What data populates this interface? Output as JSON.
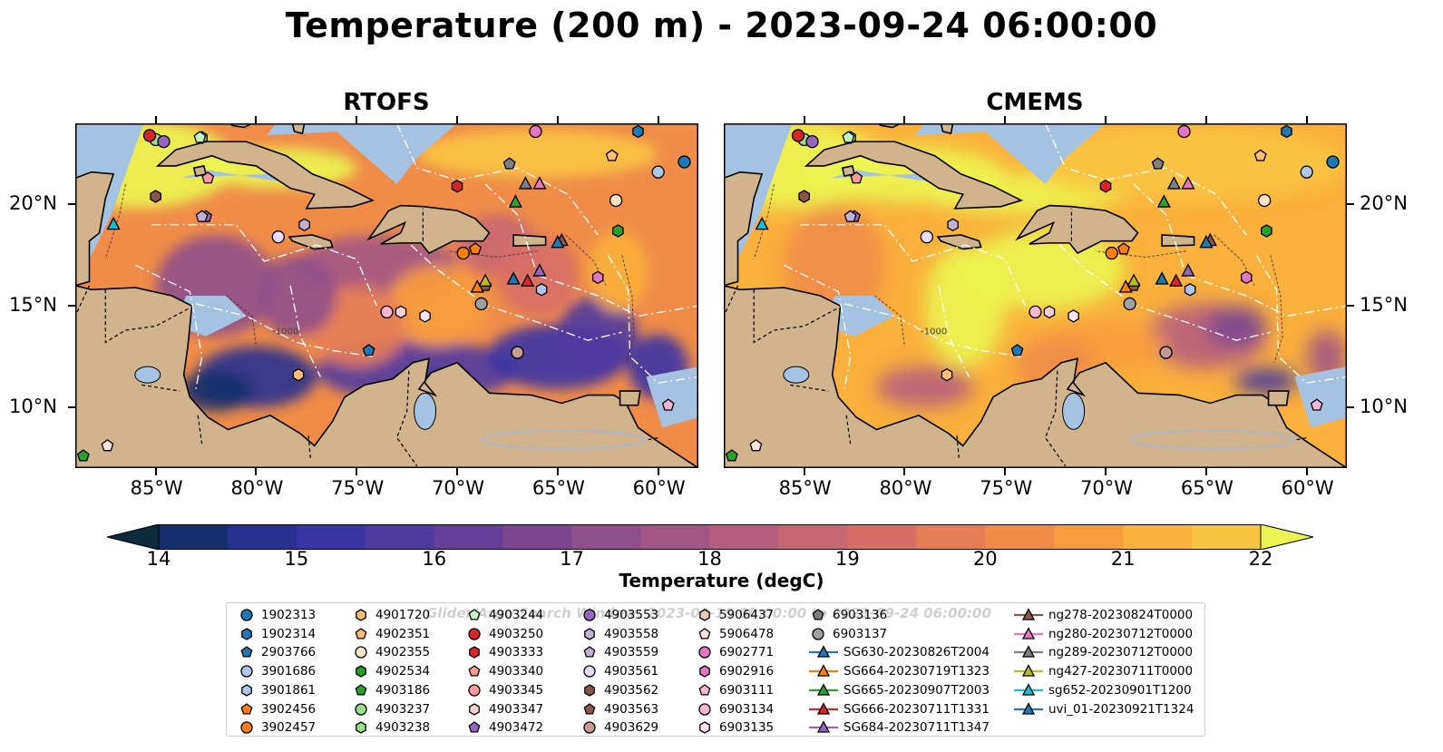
{
  "title": "Temperature (200 m) - 2023-09-24 06:00:00",
  "panels": [
    {
      "title": "RTOFS",
      "id": "rtofs"
    },
    {
      "title": "CMEMS",
      "id": "cmems"
    }
  ],
  "map": {
    "lon_range": [
      -89,
      -58
    ],
    "lat_range": [
      7,
      24
    ],
    "lon_ticks": [
      "85°W",
      "80°W",
      "75°W",
      "70°W",
      "65°W",
      "60°W"
    ],
    "lon_tick_values": [
      -85,
      -80,
      -75,
      -70,
      -65,
      -60
    ],
    "lat_ticks": [
      "20°N",
      "15°N",
      "10°N"
    ],
    "lat_tick_values": [
      20,
      15,
      10
    ],
    "contour_labels": [
      "-1000"
    ],
    "colors": {
      "land": "#d2b48c",
      "shelf": "#a5c2e3",
      "deep_pacific": "#0b2a3a"
    }
  },
  "colorbar": {
    "label": "Temperature (degC)",
    "ticks": [
      "14",
      "15",
      "16",
      "17",
      "18",
      "19",
      "20",
      "21",
      "22"
    ],
    "tick_values": [
      14,
      15,
      16,
      17,
      18,
      19,
      20,
      21,
      22
    ],
    "range": [
      14,
      22
    ],
    "extend": "both",
    "colors": [
      "#0c2a3a",
      "#172e6c",
      "#283190",
      "#3a35a4",
      "#4f3a9e",
      "#653f97",
      "#7b4790",
      "#8f4f89",
      "#a25684",
      "#b55e7e",
      "#c76773",
      "#d76f66",
      "#e57d57",
      "#f08c48",
      "#f79d3d",
      "#f9b03c",
      "#f8c542",
      "#ebf551"
    ]
  },
  "legend": {
    "watermark": "Glider/Argo Search Window: 2023-09-19 00:00:00 to 2023-09-24 06:00:00",
    "items": [
      {
        "label": "1902313",
        "marker": "circle",
        "color": "#1f77b4"
      },
      {
        "label": "1902314",
        "marker": "hexagon",
        "color": "#1f77b4"
      },
      {
        "label": "2903766",
        "marker": "pentagon",
        "color": "#1f77b4"
      },
      {
        "label": "3901686",
        "marker": "circle",
        "color": "#aec7e8"
      },
      {
        "label": "3901861",
        "marker": "hexagon",
        "color": "#aec7e8"
      },
      {
        "label": "3902456",
        "marker": "pentagon",
        "color": "#ff7f0e"
      },
      {
        "label": "3902457",
        "marker": "circle",
        "color": "#ff7f0e"
      },
      {
        "label": "4901720",
        "marker": "hexagon",
        "color": "#ffbb78"
      },
      {
        "label": "4902351",
        "marker": "pentagon",
        "color": "#ffbb78"
      },
      {
        "label": "4902355",
        "marker": "circle",
        "color": "#ffe4c4"
      },
      {
        "label": "4902534",
        "marker": "hexagon",
        "color": "#2ca02c"
      },
      {
        "label": "4903186",
        "marker": "pentagon",
        "color": "#2ca02c"
      },
      {
        "label": "4903237",
        "marker": "circle",
        "color": "#98df8a"
      },
      {
        "label": "4903238",
        "marker": "hexagon",
        "color": "#98df8a"
      },
      {
        "label": "4903244",
        "marker": "pentagon",
        "color": "#c7f2c0"
      },
      {
        "label": "4903250",
        "marker": "circle",
        "color": "#d62728"
      },
      {
        "label": "4903333",
        "marker": "hexagon",
        "color": "#d62728"
      },
      {
        "label": "4903340",
        "marker": "pentagon",
        "color": "#ff9896"
      },
      {
        "label": "4903345",
        "marker": "circle",
        "color": "#ff9896"
      },
      {
        "label": "4903347",
        "marker": "hexagon",
        "color": "#ffd0cf"
      },
      {
        "label": "4903472",
        "marker": "pentagon",
        "color": "#9467bd"
      },
      {
        "label": "4903553",
        "marker": "circle",
        "color": "#9467bd"
      },
      {
        "label": "4903558",
        "marker": "hexagon",
        "color": "#c5b0d5"
      },
      {
        "label": "4903559",
        "marker": "pentagon",
        "color": "#c5b0d5"
      },
      {
        "label": "4903561",
        "marker": "circle",
        "color": "#e8dcf2"
      },
      {
        "label": "4903562",
        "marker": "hexagon",
        "color": "#8c564b"
      },
      {
        "label": "4903563",
        "marker": "pentagon",
        "color": "#8c564b"
      },
      {
        "label": "4903629",
        "marker": "circle",
        "color": "#c49c94"
      },
      {
        "label": "5906437",
        "marker": "hexagon",
        "color": "#e7c9b8"
      },
      {
        "label": "5906478",
        "marker": "pentagon",
        "color": "#fde5dc"
      },
      {
        "label": "6902771",
        "marker": "circle",
        "color": "#e377c2"
      },
      {
        "label": "6902916",
        "marker": "hexagon",
        "color": "#e377c2"
      },
      {
        "label": "6903111",
        "marker": "pentagon",
        "color": "#f7b6d2"
      },
      {
        "label": "6903134",
        "marker": "circle",
        "color": "#f7b6d2"
      },
      {
        "label": "6903135",
        "marker": "hexagon",
        "color": "#fde4f0"
      },
      {
        "label": "6903136",
        "marker": "pentagon",
        "color": "#7f7f7f"
      },
      {
        "label": "6903137",
        "marker": "circle",
        "color": "#a0a0a0"
      },
      {
        "label": "SG630-20230826T2004",
        "marker": "triangle-line",
        "color": "#1f77b4"
      },
      {
        "label": "SG664-20230719T1323",
        "marker": "triangle-line",
        "color": "#ff7f0e"
      },
      {
        "label": "SG665-20230907T2003",
        "marker": "triangle-line",
        "color": "#2ca02c"
      },
      {
        "label": "SG666-20230711T1331",
        "marker": "triangle-line",
        "color": "#d62728"
      },
      {
        "label": "SG684-20230711T1347",
        "marker": "triangle-line",
        "color": "#9467bd"
      },
      {
        "label": "ng278-20230824T0000",
        "marker": "triangle-line",
        "color": "#8c564b"
      },
      {
        "label": "ng280-20230712T0000",
        "marker": "triangle-line",
        "color": "#e377c2"
      },
      {
        "label": "ng289-20230712T0000",
        "marker": "triangle-line",
        "color": "#7f7f7f"
      },
      {
        "label": "ng427-20230711T0000",
        "marker": "triangle-line",
        "color": "#bcbd22"
      },
      {
        "label": "sg652-20230901T1200",
        "marker": "triangle-line",
        "color": "#17becf"
      },
      {
        "label": "uvi_01-20230921T1324",
        "marker": "triangle-line",
        "color": "#1f77b4"
      }
    ]
  },
  "chart_data": {
    "type": "heatmap",
    "title": "Temperature (200 m) - 2023-09-24 06:00:00",
    "subplots": [
      "RTOFS",
      "CMEMS"
    ],
    "xlabel": "",
    "ylabel": "",
    "xlim": [
      -89,
      -58
    ],
    "ylim": [
      7,
      24
    ],
    "colorbar_label": "Temperature (degC)",
    "color_range": [
      14,
      22
    ],
    "observations": [
      {
        "id": "1902313",
        "lon": -58.7,
        "lat": 22.1
      },
      {
        "id": "1902314",
        "lon": -61.0,
        "lat": 23.6
      },
      {
        "id": "2903766",
        "lon": -74.4,
        "lat": 12.8
      },
      {
        "id": "3901686",
        "lon": -60.0,
        "lat": 21.6
      },
      {
        "id": "3901861",
        "lon": -65.8,
        "lat": 15.8
      },
      {
        "id": "3902456",
        "lon": -69.1,
        "lat": 17.8
      },
      {
        "id": "3902457",
        "lon": -69.7,
        "lat": 17.6
      },
      {
        "id": "4901720",
        "lon": -77.9,
        "lat": 11.6
      },
      {
        "id": "4902351",
        "lon": -62.3,
        "lat": 22.4
      },
      {
        "id": "4902355",
        "lon": -62.1,
        "lat": 20.2
      },
      {
        "id": "4902534",
        "lon": -62.0,
        "lat": 18.7
      },
      {
        "id": "4903186",
        "lon": -88.6,
        "lat": 7.6
      },
      {
        "id": "4903237",
        "lon": -85.0,
        "lat": 23.2
      },
      {
        "id": "4903238",
        "lon": -82.7,
        "lat": 23.3
      },
      {
        "id": "4903244",
        "lon": -82.8,
        "lat": 23.3
      },
      {
        "id": "4903250",
        "lon": -85.3,
        "lat": 23.4
      },
      {
        "id": "4903333",
        "lon": -70.0,
        "lat": 20.9
      },
      {
        "id": "4903340",
        "lon": -82.4,
        "lat": 21.3
      },
      {
        "id": "4903345",
        "lon": -67.0,
        "lat": 12.7
      },
      {
        "id": "4903347",
        "lon": -72.8,
        "lat": 14.7
      },
      {
        "id": "4903472",
        "lon": -82.5,
        "lat": 19.4
      },
      {
        "id": "4903553",
        "lon": -84.6,
        "lat": 23.1
      },
      {
        "id": "4903558",
        "lon": -77.6,
        "lat": 19.0
      },
      {
        "id": "4903559",
        "lon": -82.7,
        "lat": 19.4
      },
      {
        "id": "4903561",
        "lon": -78.9,
        "lat": 18.4
      },
      {
        "id": "4903562",
        "lon": -85.0,
        "lat": 20.4
      },
      {
        "id": "4903563",
        "lon": -68.6,
        "lat": 16.0
      },
      {
        "id": "4903629",
        "lon": -67.0,
        "lat": 12.7
      },
      {
        "id": "5906437",
        "lon": -68.8,
        "lat": 15.1
      },
      {
        "id": "5906478",
        "lon": -87.4,
        "lat": 8.1
      },
      {
        "id": "6902771",
        "lon": -66.1,
        "lat": 23.6
      },
      {
        "id": "6902916",
        "lon": -63.0,
        "lat": 16.4
      },
      {
        "id": "6903111",
        "lon": -59.5,
        "lat": 10.1
      },
      {
        "id": "6903134",
        "lon": -73.5,
        "lat": 14.7
      },
      {
        "id": "6903135",
        "lon": -71.6,
        "lat": 14.5
      },
      {
        "id": "6903136",
        "lon": -67.4,
        "lat": 22.0
      },
      {
        "id": "6903137",
        "lon": -68.8,
        "lat": 15.1
      },
      {
        "id": "SG630-20230826T2004",
        "lon": -67.2,
        "lat": 16.3
      },
      {
        "id": "SG664-20230719T1323",
        "lon": -69.0,
        "lat": 15.9
      },
      {
        "id": "SG665-20230907T2003",
        "lon": -67.1,
        "lat": 20.1
      },
      {
        "id": "SG666-20230711T1331",
        "lon": -66.5,
        "lat": 16.2
      },
      {
        "id": "SG684-20230711T1347",
        "lon": -65.9,
        "lat": 16.7
      },
      {
        "id": "ng278-20230824T0000",
        "lon": -64.8,
        "lat": 18.2
      },
      {
        "id": "ng280-20230712T0000",
        "lon": -65.9,
        "lat": 21.0
      },
      {
        "id": "ng289-20230712T0000",
        "lon": -66.6,
        "lat": 21.0
      },
      {
        "id": "ng427-20230711T0000",
        "lon": -68.6,
        "lat": 16.2
      },
      {
        "id": "sg652-20230901T1200",
        "lon": -87.1,
        "lat": 19.0
      },
      {
        "id": "uvi_01-20230921T1324",
        "lon": -65.0,
        "lat": 18.1
      }
    ]
  }
}
